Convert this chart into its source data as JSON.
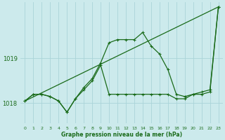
{
  "xlabel": "Graphe pression niveau de la mer (hPa)",
  "bg_color": "#cceaec",
  "grid_color": "#aad4d8",
  "line_color": "#1a6b1a",
  "xlim": [
    -0.5,
    23.5
  ],
  "ylim": [
    1017.55,
    1020.25
  ],
  "yticks": [
    1018,
    1019
  ],
  "xticks": [
    0,
    1,
    2,
    3,
    4,
    5,
    6,
    7,
    8,
    9,
    10,
    11,
    12,
    13,
    14,
    15,
    16,
    17,
    18,
    19,
    20,
    21,
    22,
    23
  ],
  "series1_x": [
    0,
    1,
    2,
    3,
    4,
    5,
    6,
    7,
    8,
    9,
    10,
    11,
    12,
    13,
    14,
    15,
    16,
    17,
    18,
    19,
    20,
    21,
    22,
    23
  ],
  "series1_y": [
    1018.05,
    1018.2,
    1018.2,
    1018.15,
    1018.05,
    1017.8,
    1018.1,
    1018.35,
    1018.55,
    1018.9,
    1019.35,
    1019.42,
    1019.42,
    1019.42,
    1019.58,
    1019.28,
    1019.1,
    1018.75,
    1018.2,
    1018.15,
    1018.2,
    1018.25,
    1018.3,
    1020.15
  ],
  "series2_x": [
    0,
    1,
    2,
    3,
    4,
    5,
    6,
    7,
    8,
    9,
    10,
    11,
    12,
    13,
    14,
    15,
    16,
    17,
    18,
    19,
    20,
    21,
    22,
    23
  ],
  "series2_y": [
    1018.05,
    1018.2,
    1018.2,
    1018.15,
    1018.05,
    1017.8,
    1018.1,
    1018.3,
    1018.5,
    1018.85,
    1018.2,
    1018.2,
    1018.2,
    1018.2,
    1018.2,
    1018.2,
    1018.2,
    1018.2,
    1018.1,
    1018.1,
    1018.2,
    1018.2,
    1018.25,
    1020.15
  ],
  "series3_x": [
    0,
    23
  ],
  "series3_y": [
    1018.05,
    1020.15
  ]
}
